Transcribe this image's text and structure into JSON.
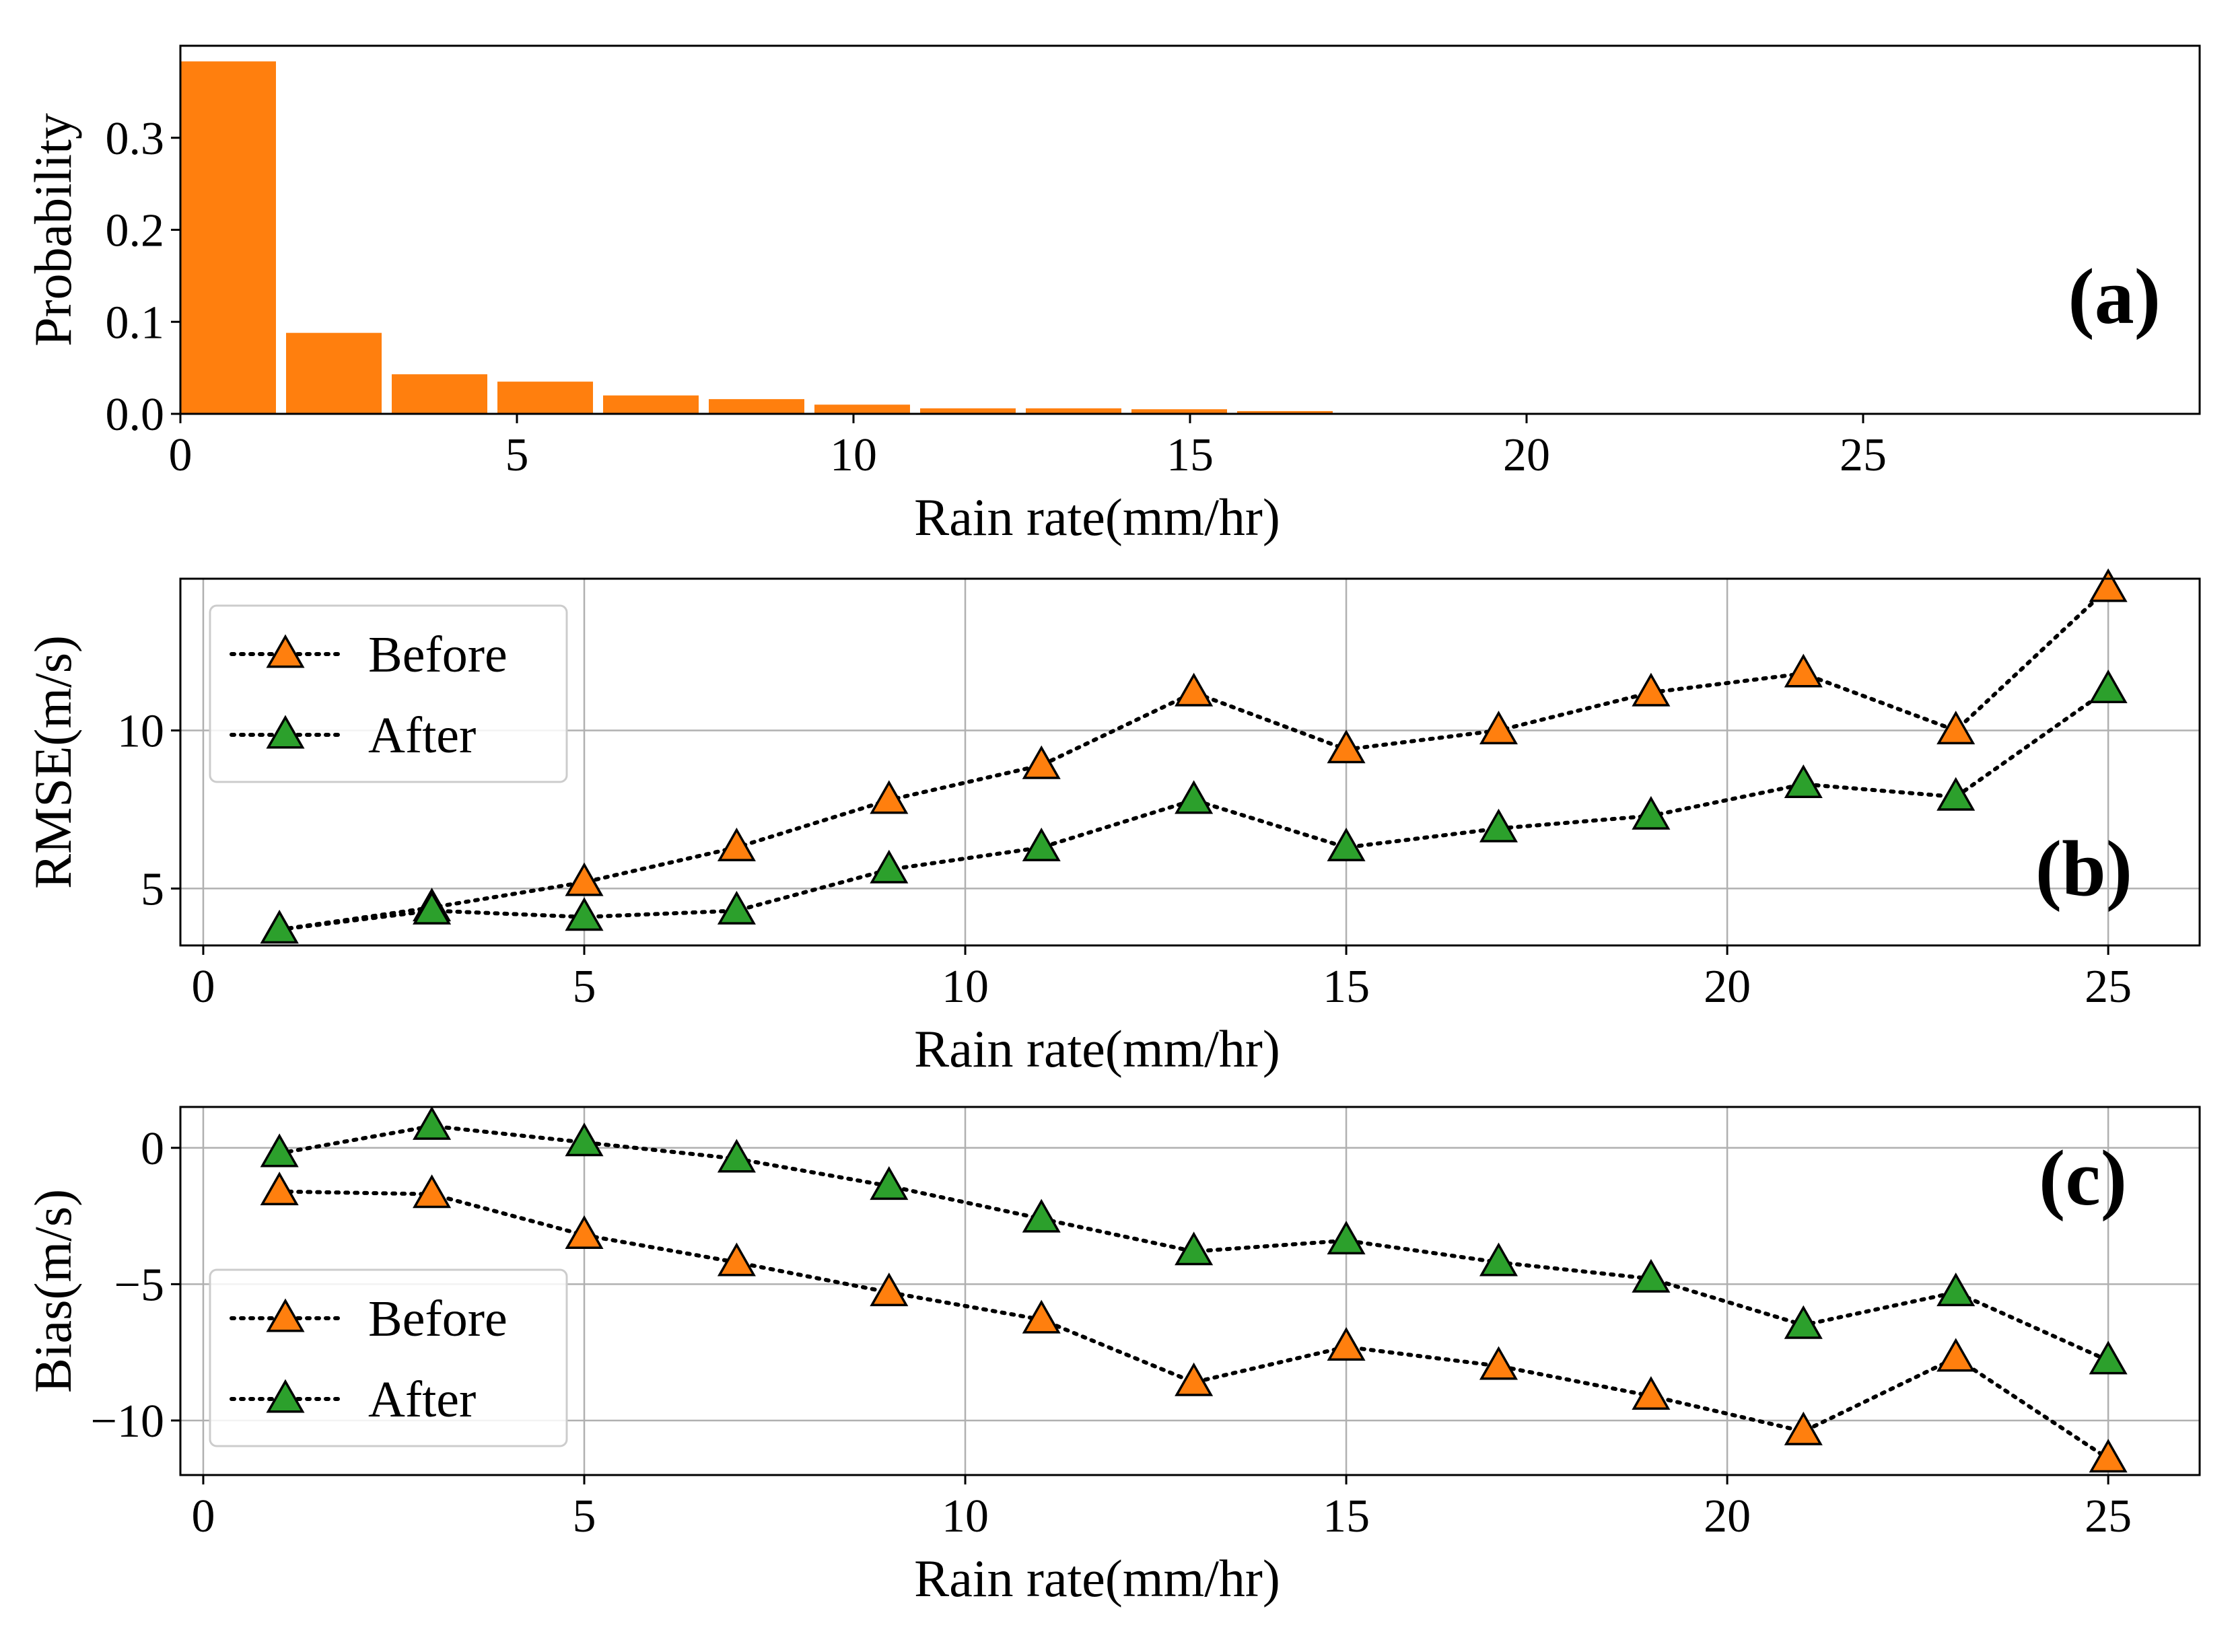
{
  "colors": {
    "before": "#ff7f0e",
    "after": "#2ca02c",
    "bar": "#ff7f0e"
  },
  "chart_data": [
    {
      "panel": "a",
      "type": "bar",
      "tag": "(a)",
      "xlabel": "Rain rate(mm/hr)",
      "ylabel": "Probability",
      "xlim": [
        0,
        30
      ],
      "ylim": [
        0,
        0.4
      ],
      "xticks": [
        0,
        5,
        10,
        15,
        20,
        25
      ],
      "yticks": [
        0.0,
        0.1,
        0.2,
        0.3
      ],
      "ytick_labels": [
        "0.0",
        "0.1",
        "0.2",
        "0.3"
      ],
      "bin_width": 1.57,
      "bar_width": 1.42,
      "bin_starts": [
        0,
        1.57,
        3.14,
        4.71,
        6.28,
        7.85,
        9.42,
        10.99,
        12.56,
        14.13,
        15.7,
        17.27,
        18.84,
        20.41
      ],
      "values": [
        0.383,
        0.088,
        0.043,
        0.035,
        0.02,
        0.016,
        0.01,
        0.006,
        0.006,
        0.005,
        0.003,
        0.001,
        0.001,
        0.001
      ],
      "grid": false
    },
    {
      "panel": "b",
      "type": "line",
      "tag": "(b)",
      "xlabel": "Rain rate(mm/hr)",
      "ylabel": "RMSE(m/s)",
      "xlim": [
        -0.3,
        26.2
      ],
      "ylim": [
        3.2,
        14.8
      ],
      "xticks": [
        0,
        5,
        10,
        15,
        20,
        25
      ],
      "yticks": [
        5,
        10
      ],
      "grid": true,
      "legend_position": "upper-left",
      "x": [
        1,
        3,
        5,
        7,
        9,
        11,
        13,
        15,
        17,
        19,
        21,
        23,
        25
      ],
      "series": [
        {
          "name": "Before",
          "color_key": "before",
          "values": [
            3.7,
            4.4,
            5.2,
            6.3,
            7.8,
            8.9,
            11.2,
            9.4,
            10.0,
            11.2,
            11.8,
            10.0,
            14.5
          ]
        },
        {
          "name": "After",
          "color_key": "after",
          "values": [
            3.7,
            4.3,
            4.1,
            4.3,
            5.6,
            6.3,
            7.8,
            6.3,
            6.9,
            7.3,
            8.3,
            7.9,
            11.3
          ]
        }
      ]
    },
    {
      "panel": "c",
      "type": "line",
      "tag": "(c)",
      "xlabel": "Rain rate(mm/hr)",
      "ylabel": "Bias(m/s)",
      "xlim": [
        -0.3,
        26.2
      ],
      "ylim": [
        -12.0,
        1.5
      ],
      "xticks": [
        0,
        5,
        10,
        15,
        20,
        25
      ],
      "yticks": [
        -10,
        -5,
        0
      ],
      "ytick_labels": [
        "−10",
        "−5",
        "0"
      ],
      "grid": true,
      "legend_position": "lower-left",
      "x": [
        1,
        3,
        5,
        7,
        9,
        11,
        13,
        15,
        17,
        19,
        21,
        23,
        25
      ],
      "series": [
        {
          "name": "Before",
          "color_key": "before",
          "values": [
            -1.6,
            -1.7,
            -3.2,
            -4.2,
            -5.3,
            -6.3,
            -8.6,
            -7.3,
            -8.0,
            -9.1,
            -10.4,
            -7.7,
            -11.4
          ]
        },
        {
          "name": "After",
          "color_key": "after",
          "values": [
            -0.2,
            0.8,
            0.2,
            -0.4,
            -1.4,
            -2.6,
            -3.8,
            -3.4,
            -4.2,
            -4.8,
            -6.5,
            -5.3,
            -7.8
          ]
        }
      ]
    }
  ]
}
